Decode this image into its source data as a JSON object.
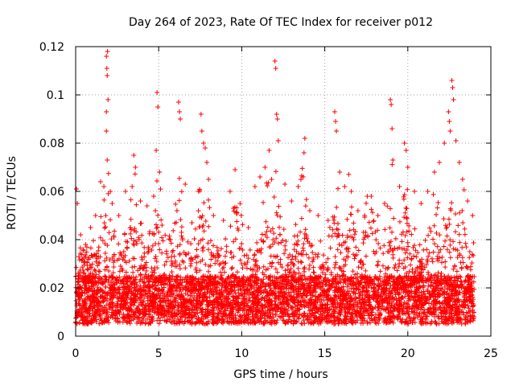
{
  "chart_data": {
    "type": "scatter",
    "title": "Day 264 of 2023, Rate Of TEC Index for receiver p012",
    "xlabel": "GPS time / hours",
    "ylabel": "ROTI / TECUs",
    "xlim": [
      0,
      25
    ],
    "ylim": [
      0,
      0.12
    ],
    "xticks": [
      0,
      5,
      10,
      15,
      20,
      25
    ],
    "yticks": [
      0,
      0.02,
      0.04,
      0.06,
      0.08,
      0.1,
      0.12
    ],
    "xtick_labels": [
      "0",
      "5",
      "10",
      "15",
      "20",
      "25"
    ],
    "ytick_labels": [
      "0",
      "0.02",
      "0.04",
      "0.06",
      "0.08",
      "0.1",
      "0.12"
    ],
    "grid": true,
    "marker": "+",
    "color": "#ff0000",
    "series": [
      {
        "x_range": [
          0,
          24
        ],
        "baseline_range": [
          0.005,
          0.025
        ],
        "points": [
          [
            0.05,
            0.061
          ],
          [
            0.1,
            0.055
          ],
          [
            0.3,
            0.042
          ],
          [
            0.6,
            0.038
          ],
          [
            0.9,
            0.045
          ],
          [
            1.2,
            0.05
          ],
          [
            1.5,
            0.064
          ],
          [
            1.7,
            0.062
          ],
          [
            1.85,
            0.116
          ],
          [
            1.88,
            0.111
          ],
          [
            1.9,
            0.108
          ],
          [
            1.92,
            0.118
          ],
          [
            1.95,
            0.098
          ],
          [
            1.85,
            0.093
          ],
          [
            1.85,
            0.085
          ],
          [
            1.9,
            0.073
          ],
          [
            2.2,
            0.055
          ],
          [
            2.6,
            0.05
          ],
          [
            3.0,
            0.06
          ],
          [
            3.4,
            0.062
          ],
          [
            3.5,
            0.075
          ],
          [
            3.6,
            0.07
          ],
          [
            3.9,
            0.056
          ],
          [
            4.3,
            0.054
          ],
          [
            4.7,
            0.058
          ],
          [
            4.8,
            0.052
          ],
          [
            4.85,
            0.077
          ],
          [
            4.9,
            0.101
          ],
          [
            4.95,
            0.095
          ],
          [
            5.05,
            0.068
          ],
          [
            5.2,
            0.046
          ],
          [
            5.7,
            0.04
          ],
          [
            6.1,
            0.052
          ],
          [
            6.2,
            0.097
          ],
          [
            6.25,
            0.093
          ],
          [
            6.3,
            0.09
          ],
          [
            6.6,
            0.063
          ],
          [
            7.0,
            0.047
          ],
          [
            7.4,
            0.06
          ],
          [
            7.55,
            0.092
          ],
          [
            7.6,
            0.085
          ],
          [
            7.7,
            0.08
          ],
          [
            7.8,
            0.078
          ],
          [
            7.9,
            0.072
          ],
          [
            8.0,
            0.065
          ],
          [
            8.3,
            0.05
          ],
          [
            8.9,
            0.048
          ],
          [
            9.3,
            0.06
          ],
          [
            9.5,
            0.053
          ],
          [
            9.6,
            0.069
          ],
          [
            9.9,
            0.055
          ],
          [
            10.4,
            0.045
          ],
          [
            10.8,
            0.062
          ],
          [
            11.1,
            0.066
          ],
          [
            11.4,
            0.07
          ],
          [
            11.65,
            0.077
          ],
          [
            11.8,
            0.065
          ],
          [
            12.0,
            0.114
          ],
          [
            12.05,
            0.111
          ],
          [
            12.1,
            0.092
          ],
          [
            12.15,
            0.09
          ],
          [
            12.2,
            0.081
          ],
          [
            12.6,
            0.063
          ],
          [
            13.0,
            0.056
          ],
          [
            13.4,
            0.062
          ],
          [
            13.8,
            0.082
          ],
          [
            13.75,
            0.076
          ],
          [
            13.7,
            0.066
          ],
          [
            14.1,
            0.052
          ],
          [
            14.6,
            0.05
          ],
          [
            15.2,
            0.048
          ],
          [
            15.6,
            0.093
          ],
          [
            15.65,
            0.089
          ],
          [
            15.7,
            0.085
          ],
          [
            15.9,
            0.068
          ],
          [
            16.2,
            0.062
          ],
          [
            16.6,
            0.06
          ],
          [
            17.0,
            0.052
          ],
          [
            17.4,
            0.05
          ],
          [
            17.8,
            0.058
          ],
          [
            18.2,
            0.05
          ],
          [
            18.6,
            0.055
          ],
          [
            18.95,
            0.098
          ],
          [
            19.0,
            0.096
          ],
          [
            19.05,
            0.086
          ],
          [
            19.1,
            0.073
          ],
          [
            19.5,
            0.062
          ],
          [
            19.8,
            0.08
          ],
          [
            19.9,
            0.077
          ],
          [
            20.0,
            0.07
          ],
          [
            20.4,
            0.06
          ],
          [
            20.8,
            0.055
          ],
          [
            21.2,
            0.06
          ],
          [
            21.6,
            0.068
          ],
          [
            21.9,
            0.072
          ],
          [
            22.2,
            0.08
          ],
          [
            22.45,
            0.093
          ],
          [
            22.5,
            0.089
          ],
          [
            22.55,
            0.085
          ],
          [
            22.65,
            0.106
          ],
          [
            22.7,
            0.103
          ],
          [
            22.75,
            0.098
          ],
          [
            22.9,
            0.081
          ],
          [
            23.1,
            0.072
          ],
          [
            23.3,
            0.065
          ],
          [
            23.6,
            0.056
          ],
          [
            23.9,
            0.05
          ]
        ]
      }
    ]
  }
}
